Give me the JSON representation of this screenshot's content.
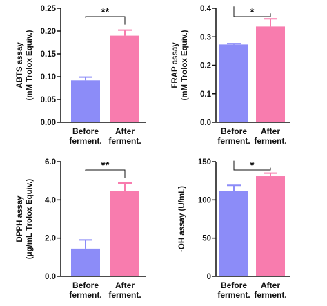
{
  "colors": {
    "before": "#8c8cf8",
    "after": "#f87cae",
    "axis": "#111111"
  },
  "chart_data": [
    {
      "type": "bar",
      "categories": [
        "Before\nferment.",
        "After\nferment."
      ],
      "values": [
        0.092,
        0.19
      ],
      "errors": [
        0.007,
        0.012
      ],
      "ylabel_lines": [
        "ABTS assay",
        "(mM Trolox Equiv.)"
      ],
      "ylim": [
        0,
        0.25
      ],
      "yticks": [
        "0.00",
        "0.05",
        "0.10",
        "0.15",
        "0.20",
        "0.25"
      ],
      "significance": "**"
    },
    {
      "type": "bar",
      "categories": [
        "Before\nferment.",
        "After\nferment."
      ],
      "values": [
        0.273,
        0.336
      ],
      "errors": [
        0.003,
        0.027
      ],
      "ylabel_lines": [
        "FRAP assay",
        "(mM Trolox Equiv.)"
      ],
      "ylim": [
        0,
        0.4
      ],
      "yticks": [
        "0.0",
        "0.1",
        "0.2",
        "0.3",
        "0.4"
      ],
      "significance": "*"
    },
    {
      "type": "bar",
      "categories": [
        "Before\nferment.",
        "After\nferment."
      ],
      "values": [
        1.45,
        4.48
      ],
      "errors": [
        0.45,
        0.4
      ],
      "ylabel_lines": [
        "DPPH assay",
        "(μg/mL Trolox Equiv.)"
      ],
      "ylim": [
        0,
        6.0
      ],
      "yticks": [
        "0.0",
        "2.0",
        "4.0",
        "6.0"
      ],
      "significance": "**"
    },
    {
      "type": "bar",
      "categories": [
        "Before\nferment.",
        "After\nferment."
      ],
      "values": [
        112,
        131
      ],
      "errors": [
        7,
        4
      ],
      "ylabel_lines": [
        "·OH assay (U/mL)"
      ],
      "ylim": [
        0,
        150
      ],
      "yticks": [
        "0",
        "50",
        "100",
        "150"
      ],
      "significance": "*"
    }
  ]
}
